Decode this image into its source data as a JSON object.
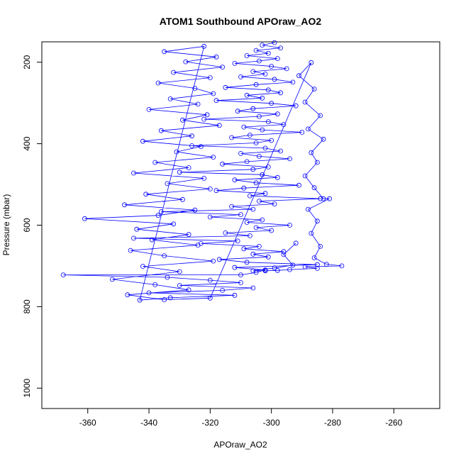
{
  "chart_data": {
    "type": "scatter",
    "title": "ATOM1 Southbound APOraw_AO2",
    "xlabel": "APOraw_AO2",
    "ylabel": "Pressure (mbar)",
    "xlim": [
      -375,
      -245
    ],
    "ylim": [
      1050,
      150
    ],
    "y_reversed": true,
    "x_ticks": [
      -360,
      -340,
      -320,
      -300,
      -280,
      -260
    ],
    "y_ticks": [
      200,
      400,
      600,
      800,
      1000
    ],
    "grid": false,
    "legend": "none",
    "series": [
      {
        "color": "#0000ff",
        "marker": "open-circle",
        "connected": true,
        "points": [
          [
            -299,
            152
          ],
          [
            -303,
            158
          ],
          [
            -297,
            165
          ],
          [
            -305,
            171
          ],
          [
            -301,
            178
          ],
          [
            -308,
            184
          ],
          [
            -298,
            191
          ],
          [
            -304,
            197
          ],
          [
            -312,
            203
          ],
          [
            -300,
            210
          ],
          [
            -295,
            216
          ],
          [
            -306,
            223
          ],
          [
            -302,
            229
          ],
          [
            -310,
            236
          ],
          [
            -299,
            242
          ],
          [
            -293,
            249
          ],
          [
            -305,
            255
          ],
          [
            -315,
            262
          ],
          [
            -301,
            268
          ],
          [
            -297,
            275
          ],
          [
            -308,
            281
          ],
          [
            -303,
            288
          ],
          [
            -318,
            294
          ],
          [
            -300,
            301
          ],
          [
            -292,
            307
          ],
          [
            -306,
            314
          ],
          [
            -311,
            320
          ],
          [
            -298,
            327
          ],
          [
            -304,
            333
          ],
          [
            -322,
            340
          ],
          [
            -301,
            346
          ],
          [
            -296,
            353
          ],
          [
            -309,
            359
          ],
          [
            -303,
            366
          ],
          [
            -290,
            372
          ],
          [
            -307,
            379
          ],
          [
            -313,
            385
          ],
          [
            -300,
            392
          ],
          [
            -305,
            398
          ],
          [
            -326,
            405
          ],
          [
            -302,
            411
          ],
          [
            -297,
            418
          ],
          [
            -310,
            424
          ],
          [
            -304,
            431
          ],
          [
            -294,
            437
          ],
          [
            -308,
            444
          ],
          [
            -316,
            450
          ],
          [
            -301,
            457
          ],
          [
            -306,
            463
          ],
          [
            -330,
            470
          ],
          [
            -303,
            476
          ],
          [
            -298,
            483
          ],
          [
            -312,
            489
          ],
          [
            -305,
            496
          ],
          [
            -291,
            502
          ],
          [
            -309,
            509
          ],
          [
            -318,
            515
          ],
          [
            -302,
            522
          ],
          [
            -307,
            528
          ],
          [
            -284,
            535
          ],
          [
            -304,
            541
          ],
          [
            -299,
            548
          ],
          [
            -313,
            554
          ],
          [
            -306,
            561
          ],
          [
            -336,
            567
          ],
          [
            -310,
            574
          ],
          [
            -320,
            580
          ],
          [
            -303,
            587
          ],
          [
            -308,
            593
          ],
          [
            -294,
            600
          ],
          [
            -305,
            606
          ],
          [
            -300,
            613
          ],
          [
            -315,
            619
          ],
          [
            -307,
            626
          ],
          [
            -345,
            632
          ],
          [
            -311,
            639
          ],
          [
            -323,
            645
          ],
          [
            -304,
            652
          ],
          [
            -309,
            658
          ],
          [
            -296,
            665
          ],
          [
            -306,
            671
          ],
          [
            -301,
            678
          ],
          [
            -317,
            684
          ],
          [
            -308,
            691
          ],
          [
            -285,
            697
          ],
          [
            -312,
            704
          ],
          [
            -302,
            710
          ],
          [
            -305,
            716
          ],
          [
            -310,
            722
          ],
          [
            -368,
            722
          ],
          [
            -334,
            728
          ],
          [
            -320,
            735
          ],
          [
            -310,
            741
          ],
          [
            -330,
            748
          ],
          [
            -306,
            754
          ],
          [
            -316,
            760
          ],
          [
            -340,
            766
          ],
          [
            -312,
            772
          ],
          [
            -333,
            778
          ],
          [
            -343,
            784
          ],
          [
            -322,
            161
          ],
          [
            -335,
            174
          ],
          [
            -318,
            187
          ],
          [
            -328,
            199
          ],
          [
            -316,
            212
          ],
          [
            -332,
            225
          ],
          [
            -320,
            238
          ],
          [
            -337,
            251
          ],
          [
            -325,
            264
          ],
          [
            -319,
            277
          ],
          [
            -333,
            290
          ],
          [
            -324,
            303
          ],
          [
            -340,
            316
          ],
          [
            -321,
            329
          ],
          [
            -329,
            342
          ],
          [
            -317,
            355
          ],
          [
            -336,
            368
          ],
          [
            -326,
            381
          ],
          [
            -342,
            394
          ],
          [
            -323,
            407
          ],
          [
            -331,
            420
          ],
          [
            -319,
            433
          ],
          [
            -338,
            446
          ],
          [
            -327,
            459
          ],
          [
            -345,
            472
          ],
          [
            -322,
            485
          ],
          [
            -334,
            498
          ],
          [
            -320,
            511
          ],
          [
            -341,
            524
          ],
          [
            -329,
            537
          ],
          [
            -348,
            550
          ],
          [
            -325,
            563
          ],
          [
            -337,
            576
          ],
          [
            -361,
            584
          ],
          [
            -332,
            597
          ],
          [
            -344,
            610
          ],
          [
            -327,
            623
          ],
          [
            -339,
            636
          ],
          [
            -324,
            649
          ],
          [
            -346,
            662
          ],
          [
            -335,
            675
          ],
          [
            -319,
            688
          ],
          [
            -342,
            701
          ],
          [
            -330,
            714
          ],
          [
            -352,
            733
          ],
          [
            -338,
            746
          ],
          [
            -327,
            759
          ],
          [
            -347,
            771
          ],
          [
            -335,
            783
          ],
          [
            -320,
            779
          ],
          [
            -287,
            201
          ],
          [
            -291,
            233
          ],
          [
            -286,
            266
          ],
          [
            -289,
            298
          ],
          [
            -284,
            331
          ],
          [
            -288,
            364
          ],
          [
            -283,
            389
          ],
          [
            -287,
            422
          ],
          [
            -285,
            446
          ],
          [
            -289,
            479
          ],
          [
            -286,
            508
          ],
          [
            -283,
            535
          ],
          [
            -281,
            535
          ],
          [
            -288,
            561
          ],
          [
            -285,
            590
          ],
          [
            -287,
            620
          ],
          [
            -284,
            652
          ],
          [
            -286,
            680
          ],
          [
            -282,
            696
          ],
          [
            -277,
            700
          ],
          [
            -289,
            702
          ],
          [
            -285,
            706
          ],
          [
            -294,
            709
          ],
          [
            -298,
            711
          ],
          [
            -302,
            712
          ],
          [
            -306,
            712
          ],
          [
            -299,
            705
          ],
          [
            -293,
            698
          ],
          [
            -296,
            672
          ],
          [
            -292,
            644
          ]
        ]
      }
    ]
  }
}
